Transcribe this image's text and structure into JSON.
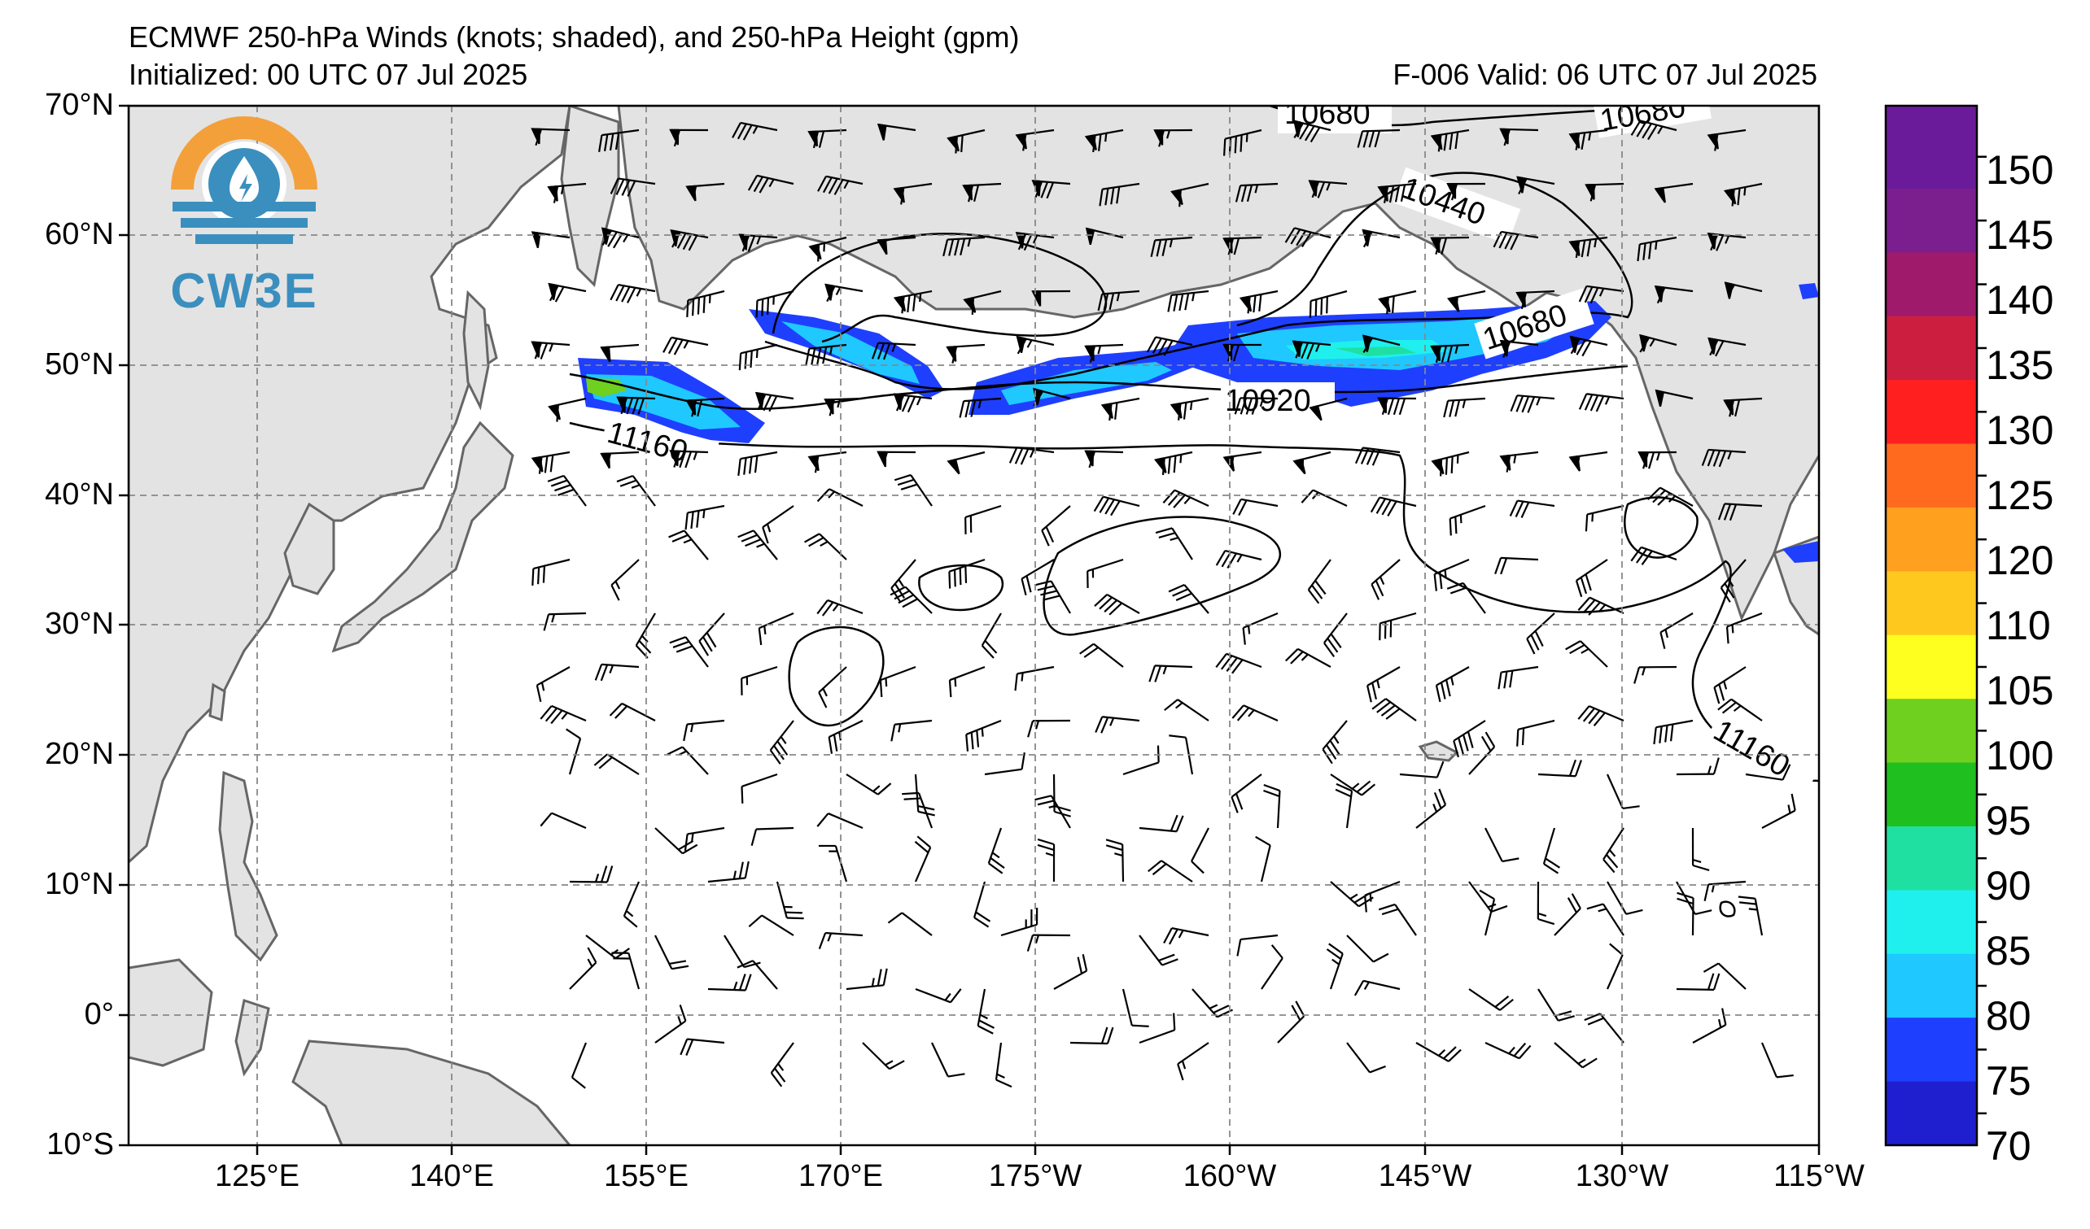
{
  "header": {
    "title": "ECMWF 250-hPa Winds (knots; shaded), and 250-hPa Height (gpm)",
    "initialized": "Initialized: 00 UTC 07 Jul 2025",
    "valid": "F-006  Valid: 06 UTC 07 Jul 2025"
  },
  "logo": {
    "text": "CW3E",
    "icon": "cw3e-water-drop-logo-icon"
  },
  "axes": {
    "lat_labels": [
      "70°N",
      "60°N",
      "50°N",
      "40°N",
      "30°N",
      "20°N",
      "10°N",
      "0°",
      "10°S"
    ],
    "lon_labels": [
      "125°E",
      "140°E",
      "155°E",
      "170°E",
      "175°W",
      "160°W",
      "145°W",
      "130°W",
      "115°W"
    ]
  },
  "contour_labels": [
    "10680",
    "10680",
    "10440",
    "10680",
    "10920",
    "11160",
    "11160"
  ],
  "colorbar": {
    "labels": [
      "150",
      "145",
      "140",
      "135",
      "130",
      "125",
      "120",
      "110",
      "105",
      "100",
      "95",
      "90",
      "85",
      "80",
      "75",
      "70"
    ],
    "colors": [
      "#6a1b9a",
      "#7b1f8f",
      "#a01a6b",
      "#cc1f3f",
      "#ff1f1f",
      "#ff6a1f",
      "#ffa01f",
      "#ffc81f",
      "#ffff1f",
      "#6fd01f",
      "#1fbf1f",
      "#1fe0a0",
      "#1ff0ee",
      "#1fc8ff",
      "#1f3fff",
      "#1f1fd0"
    ]
  },
  "map": {
    "land_color": "#e3e3e3",
    "coast_color": "#666666",
    "grid_color": "#888888",
    "shade_levels_kt": [
      70,
      75,
      80,
      85,
      90,
      95,
      100,
      105,
      110,
      120,
      125,
      130,
      135,
      140,
      145,
      150
    ]
  }
}
